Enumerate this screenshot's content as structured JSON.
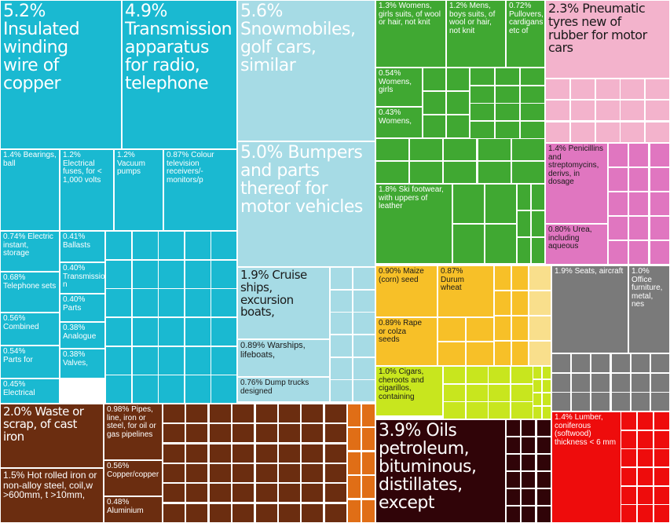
{
  "chart_data": {
    "type": "treemap",
    "colors": {
      "machinery": "#1ab9d1",
      "transport": "#a6dbe5",
      "textiles": "#40a832",
      "plastics": "#f3b3cc",
      "chemicals": "#e076c0",
      "vegetable": "#f7c028",
      "foodstuffs": "#c8e61e",
      "instruments": "#7a7a7a",
      "metals": "#6b2d10",
      "wood": "#ee0c0c",
      "mineral": "#300408",
      "orange_misc": "#e06e16",
      "light_yellow": "#f9df8c"
    },
    "labeled_items": [
      {
        "id": "insulated_wire",
        "label": "5.2% Insulated winding wire of copper",
        "share": 5.2,
        "group": "machinery"
      },
      {
        "id": "transmission",
        "label": "4.9% Transmission apparatus for radio, telephone",
        "share": 4.9,
        "group": "machinery"
      },
      {
        "id": "bearings",
        "label": "1.4% Bearings, ball",
        "share": 1.4,
        "group": "machinery"
      },
      {
        "id": "fuses",
        "label": "1.2% Electrical fuses, for < 1,000 volts",
        "share": 1.2,
        "group": "machinery"
      },
      {
        "id": "vacuum_pumps",
        "label": "1.2% Vacuum pumps",
        "share": 1.2,
        "group": "machinery"
      },
      {
        "id": "tv_receivers",
        "label": "0.87% Colour television receivers/-monitors/p",
        "share": 0.87,
        "group": "machinery"
      },
      {
        "id": "electric_instant",
        "label": "0.74% Electric instant, storage",
        "share": 0.74,
        "group": "machinery"
      },
      {
        "id": "ballasts",
        "label": "0.41% Ballasts",
        "share": 0.41,
        "group": "machinery"
      },
      {
        "id": "telephone_sets",
        "label": "0.68% Telephone sets",
        "share": 0.68,
        "group": "machinery"
      },
      {
        "id": "transmission_040",
        "label": "0.40% Transmission",
        "share": 0.4,
        "group": "machinery"
      },
      {
        "id": "parts_040",
        "label": "0.40% Parts",
        "share": 0.4,
        "group": "machinery"
      },
      {
        "id": "combined",
        "label": "0.56% Combined",
        "share": 0.56,
        "group": "machinery"
      },
      {
        "id": "analogue",
        "label": "0.38% Analogue",
        "share": 0.38,
        "group": "machinery"
      },
      {
        "id": "parts_054",
        "label": "0.54% Parts for",
        "share": 0.54,
        "group": "machinery"
      },
      {
        "id": "valves",
        "label": "0.38% Valves,",
        "share": 0.38,
        "group": "machinery"
      },
      {
        "id": "electrical_045",
        "label": "0.45% Electrical",
        "share": 0.45,
        "group": "machinery"
      },
      {
        "id": "snowmobiles",
        "label": "5.6% Snowmobiles, golf cars, similar",
        "share": 5.6,
        "group": "transport"
      },
      {
        "id": "bumpers",
        "label": "5.0% Bumpers and parts thereof for motor vehicles",
        "share": 5.0,
        "group": "transport"
      },
      {
        "id": "cruise",
        "label": "1.9% Cruise ships, excursion boats,",
        "share": 1.9,
        "group": "transport"
      },
      {
        "id": "warships",
        "label": "0.89% Warships, lifeboats,",
        "share": 0.89,
        "group": "transport"
      },
      {
        "id": "dump_trucks",
        "label": "0.76% Dump trucks designed",
        "share": 0.76,
        "group": "transport"
      },
      {
        "id": "womens_suits",
        "label": "1.3% Womens, girls suits, of wool or hair, not knit",
        "share": 1.3,
        "group": "textiles"
      },
      {
        "id": "mens_suits",
        "label": "1.2% Mens, boys suits, of wool or hair, not knit",
        "share": 1.2,
        "group": "textiles"
      },
      {
        "id": "pullovers",
        "label": "0.72% Pullovers, cardigans etc of",
        "share": 0.72,
        "group": "textiles"
      },
      {
        "id": "womens_054",
        "label": "0.54% Womens, girls",
        "share": 0.54,
        "group": "textiles"
      },
      {
        "id": "womens_043",
        "label": "0.43% Womens,",
        "share": 0.43,
        "group": "textiles"
      },
      {
        "id": "ski_footwear",
        "label": "1.8% Ski footwear, with uppers of leather",
        "share": 1.8,
        "group": "textiles"
      },
      {
        "id": "tyres",
        "label": "2.3% Pneumatic tyres new of rubber for motor cars",
        "share": 2.3,
        "group": "plastics"
      },
      {
        "id": "penicillins",
        "label": "1.4% Penicillins and streptomycins, derivs, in dosage",
        "share": 1.4,
        "group": "chemicals"
      },
      {
        "id": "urea",
        "label": "0.80% Urea, including aqueous",
        "share": 0.8,
        "group": "chemicals"
      },
      {
        "id": "maize",
        "label": "0.90% Maize (corn) seed",
        "share": 0.9,
        "group": "vegetable"
      },
      {
        "id": "durum",
        "label": "0.87% Durum wheat",
        "share": 0.87,
        "group": "vegetable"
      },
      {
        "id": "rape",
        "label": "0.89% Rape or colza seeds",
        "share": 0.89,
        "group": "vegetable"
      },
      {
        "id": "cigars",
        "label": "1.0% Cigars, cheroots and cigarillos, containing",
        "share": 1.0,
        "group": "foodstuffs"
      },
      {
        "id": "seats_aircraft",
        "label": "1.9% Seats, aircraft",
        "share": 1.9,
        "group": "instruments"
      },
      {
        "id": "office_furniture",
        "label": "1.0% Office furniture, metal, nes",
        "share": 1.0,
        "group": "instruments"
      },
      {
        "id": "waste_scrap",
        "label": "2.0% Waste or scrap, of cast iron",
        "share": 2.0,
        "group": "metals"
      },
      {
        "id": "pipes",
        "label": "0.98% Pipes, line, iron or steel, for oil or gas pipelines",
        "share": 0.98,
        "group": "metals"
      },
      {
        "id": "hot_rolled",
        "label": "1.5% Hot rolled iron or non-alloy steel, coil,w >600mm, t >10mm,",
        "share": 1.5,
        "group": "metals"
      },
      {
        "id": "copper_copper",
        "label": "0.56% Copper/copper",
        "share": 0.56,
        "group": "metals"
      },
      {
        "id": "aluminium",
        "label": "0.48% Aluminium",
        "share": 0.48,
        "group": "metals"
      },
      {
        "id": "oils",
        "label": "3.9% Oils petroleum, bituminous, distillates, except",
        "share": 3.9,
        "group": "mineral"
      },
      {
        "id": "lumber",
        "label": "1.4% Lumber, coniferous (softwood) thickness < 6 mm",
        "share": 1.4,
        "group": "wood"
      }
    ]
  }
}
